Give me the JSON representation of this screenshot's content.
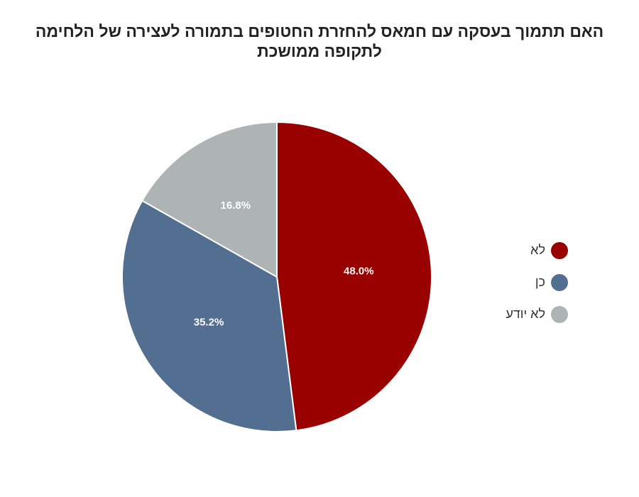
{
  "chart_data": {
    "type": "pie",
    "title": "האם תתמוך בעסקה עם חמאס להחזרת החטופים בתמורה לעצירה של הלחימה לתקופה ממושכת",
    "slices": [
      {
        "name": "לא",
        "value": 48.0,
        "label": "48.0%",
        "color": "#990000"
      },
      {
        "name": "כן",
        "value": 35.2,
        "label": "35.2%",
        "color": "#526F91"
      },
      {
        "name": "לא יודע",
        "value": 16.8,
        "label": "16.8%",
        "color": "#AEB3B3"
      }
    ],
    "start_angle_deg": 0,
    "direction": "clockwise",
    "legend_position": "right"
  }
}
